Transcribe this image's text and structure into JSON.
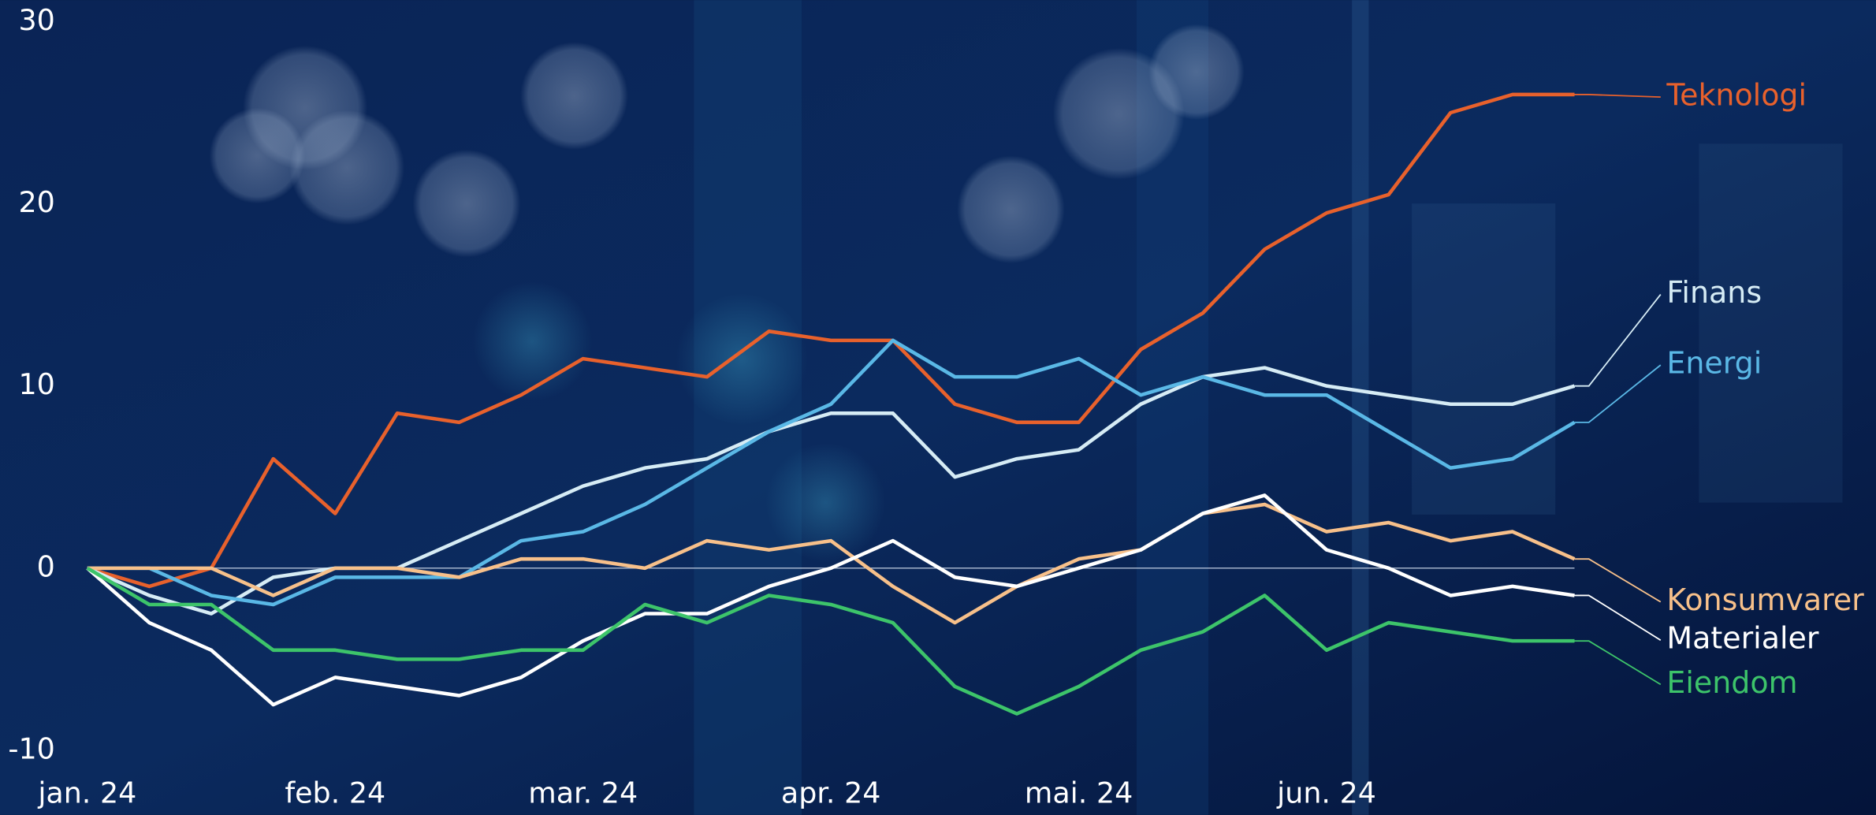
{
  "chart_data": {
    "type": "line",
    "categories": [
      "jan. 24",
      null,
      null,
      null,
      "feb. 24",
      null,
      null,
      null,
      "mar. 24",
      null,
      null,
      null,
      "apr. 24",
      null,
      null,
      null,
      "mai. 24",
      null,
      null,
      null,
      "jun. 24",
      null,
      null,
      null,
      null
    ],
    "ylim": [
      -10,
      30
    ],
    "yticks": [
      -10,
      0,
      10,
      20,
      30
    ],
    "series": [
      {
        "name": "Teknologi",
        "color": "#e8612c",
        "values": [
          0,
          -1,
          0,
          6,
          3,
          8.5,
          8,
          9.5,
          11.5,
          11,
          10.5,
          13,
          12.5,
          12.5,
          9,
          8,
          8,
          12,
          14,
          17.5,
          19.5,
          20.5,
          25,
          26,
          26
        ]
      },
      {
        "name": "Finans",
        "color": "#d6ecf5",
        "values": [
          0,
          -1.5,
          -2.5,
          -0.5,
          0,
          0,
          1.5,
          3,
          4.5,
          5.5,
          6,
          7.5,
          8.5,
          8.5,
          5,
          6,
          6.5,
          9,
          10.5,
          11,
          10,
          9.5,
          9,
          9,
          10
        ]
      },
      {
        "name": "Energi",
        "color": "#5ab8e6",
        "values": [
          0,
          0,
          -1.5,
          -2,
          -0.5,
          -0.5,
          -0.5,
          1.5,
          2,
          3.5,
          5.5,
          7.5,
          9,
          12.5,
          10.5,
          10.5,
          11.5,
          9.5,
          10.5,
          9.5,
          9.5,
          7.5,
          5.5,
          6,
          8
        ]
      },
      {
        "name": "Konsumvarer",
        "color": "#f7c08a",
        "values": [
          0,
          0,
          0,
          -1.5,
          0,
          0,
          -0.5,
          0.5,
          0.5,
          0,
          1.5,
          1,
          1.5,
          -1,
          -3,
          -1,
          0.5,
          1,
          3,
          3.5,
          2,
          2.5,
          1.5,
          2,
          0.5
        ]
      },
      {
        "name": "Materialer",
        "color": "#ffffff",
        "values": [
          0,
          -3,
          -4.5,
          -7.5,
          -6,
          -6.5,
          -7,
          -6,
          -4,
          -2.5,
          -2.5,
          -1,
          0,
          1.5,
          -0.5,
          -1,
          0,
          1,
          3,
          4,
          1,
          0,
          -1.5,
          -1,
          -1.5
        ]
      },
      {
        "name": "Eiendom",
        "color": "#3dc46a",
        "values": [
          0,
          -2,
          -2,
          -4.5,
          -4.5,
          -5,
          -5,
          -4.5,
          -4.5,
          -2,
          -3,
          -1.5,
          -2,
          -3,
          -6.5,
          -8,
          -6.5,
          -4.5,
          -3.5,
          -1.5,
          -4.5,
          -3,
          -3.5,
          -4,
          -4
        ]
      }
    ]
  }
}
